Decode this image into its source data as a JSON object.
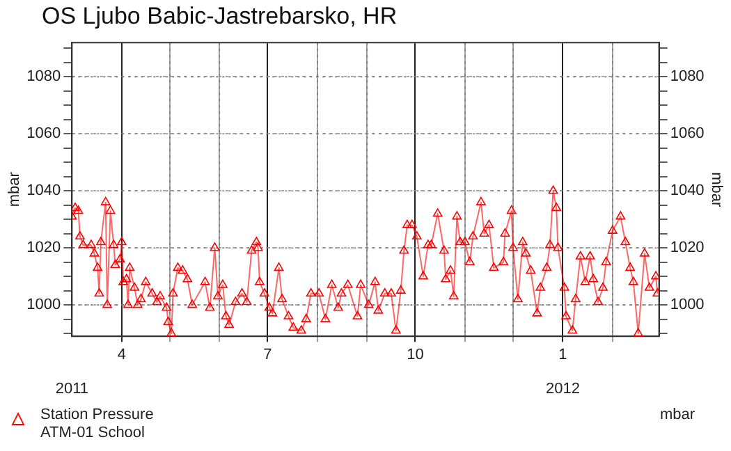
{
  "chart_data": {
    "type": "line",
    "title": "OS Ljubo Babic-Jastrebarsko, HR",
    "ylabel": "mbar",
    "y2label": "mbar",
    "xlim": [
      "2011-03-01",
      "2012-03-01"
    ],
    "x2lim": [
      "2011-03-01",
      "2012-03-01"
    ],
    "x2ticks": [
      {
        "value": "2011-03-01",
        "label": "2011"
      },
      {
        "value": "2012-01-01",
        "label": "2012"
      }
    ],
    "xticks": [
      {
        "value": "2011-04-01",
        "label": "4"
      },
      {
        "value": "2011-05-01",
        "label": null
      },
      {
        "value": "2011-06-01",
        "label": null
      },
      {
        "value": "2011-07-01",
        "label": "7"
      },
      {
        "value": "2011-08-01",
        "label": null
      },
      {
        "value": "2011-09-01",
        "label": null
      },
      {
        "value": "2011-10-01",
        "label": "10"
      },
      {
        "value": "2011-11-01",
        "label": null
      },
      {
        "value": "2011-12-01",
        "label": null
      },
      {
        "value": "2012-01-01",
        "label": "1"
      },
      {
        "value": "2012-02-01",
        "label": null
      }
    ],
    "ylim": [
      989,
      1092
    ],
    "yticks": [
      {
        "value": 990,
        "label": null
      },
      {
        "value": 995,
        "label": null
      },
      1000,
      {
        "value": 1005,
        "label": null
      },
      {
        "value": 1010,
        "label": null
      },
      {
        "value": 1015,
        "label": null
      },
      1020,
      {
        "value": 1025,
        "label": null
      },
      {
        "value": 1030,
        "label": null
      },
      {
        "value": 1035,
        "label": null
      },
      1040,
      {
        "value": 1045,
        "label": null
      },
      {
        "value": 1050,
        "label": null
      },
      {
        "value": 1055,
        "label": null
      },
      1060,
      {
        "value": 1065,
        "label": null
      },
      {
        "value": 1070,
        "label": null
      },
      {
        "value": 1075,
        "label": null
      },
      1080,
      {
        "value": 1085,
        "label": null
      },
      {
        "value": 1090,
        "label": null
      }
    ],
    "y2lim": [
      989,
      1092
    ],
    "y2ticks": [
      {
        "value": 990,
        "label": null
      },
      {
        "value": 995,
        "label": null
      },
      1000,
      {
        "value": 1005,
        "label": null
      },
      {
        "value": 1010,
        "label": null
      },
      {
        "value": 1015,
        "label": null
      },
      1020,
      {
        "value": 1025,
        "label": null
      },
      {
        "value": 1030,
        "label": null
      },
      {
        "value": 1035,
        "label": null
      },
      1040,
      {
        "value": 1045,
        "label": null
      },
      {
        "value": 1050,
        "label": null
      },
      {
        "value": 1055,
        "label": null
      },
      1060,
      {
        "value": 1065,
        "label": null
      },
      {
        "value": 1070,
        "label": null
      },
      {
        "value": 1075,
        "label": null
      },
      1080,
      {
        "value": 1085,
        "label": null
      },
      {
        "value": 1090,
        "label": null
      }
    ],
    "grid": true,
    "legend": "bottom",
    "marker": "triangle",
    "line_style": "solid",
    "annotations": [
      "mbar"
    ],
    "series": [
      {
        "name": "Station Pressure\nATM-01 School",
        "color": "#ff0000",
        "x": [
          "2011-03-01",
          "2011-03-03",
          "2011-03-05",
          "2011-03-06",
          "2011-03-08",
          "2011-03-13",
          "2011-03-15",
          "2011-03-17",
          "2011-03-18",
          "2011-03-19",
          "2011-03-22",
          "2011-03-23",
          "2011-03-25",
          "2011-03-27",
          "2011-03-28",
          "2011-03-31",
          "2011-04-01",
          "2011-04-02",
          "2011-04-04",
          "2011-04-05",
          "2011-04-06",
          "2011-04-09",
          "2011-04-11",
          "2011-04-13",
          "2011-04-16",
          "2011-04-20",
          "2011-04-23",
          "2011-04-25",
          "2011-04-29",
          "2011-04-30",
          "2011-05-02",
          "2011-05-03",
          "2011-05-06",
          "2011-05-09",
          "2011-05-12",
          "2011-05-15",
          "2011-05-23",
          "2011-05-26",
          "2011-05-29",
          "2011-05-31",
          "2011-06-03",
          "2011-06-05",
          "2011-06-07",
          "2011-06-11",
          "2011-06-15",
          "2011-06-18",
          "2011-06-21",
          "2011-06-24",
          "2011-06-25",
          "2011-06-26",
          "2011-06-29",
          "2011-07-02",
          "2011-07-04",
          "2011-07-08",
          "2011-07-10",
          "2011-07-14",
          "2011-07-17",
          "2011-07-22",
          "2011-07-25",
          "2011-07-28",
          "2011-08-02",
          "2011-08-06",
          "2011-08-10",
          "2011-08-14",
          "2011-08-16",
          "2011-08-20",
          "2011-08-26",
          "2011-08-28",
          "2011-09-02",
          "2011-09-06",
          "2011-09-08",
          "2011-09-12",
          "2011-09-16",
          "2011-09-19",
          "2011-09-22",
          "2011-09-24",
          "2011-09-26",
          "2011-09-29",
          "2011-10-02",
          "2011-10-06",
          "2011-10-09",
          "2011-10-11",
          "2011-10-15",
          "2011-10-19",
          "2011-10-20",
          "2011-10-23",
          "2011-10-25",
          "2011-10-27",
          "2011-10-29",
          "2011-11-01",
          "2011-11-04",
          "2011-11-06",
          "2011-11-11",
          "2011-11-13",
          "2011-11-16",
          "2011-11-19",
          "2011-11-25",
          "2011-11-26",
          "2011-11-30",
          "2011-12-01",
          "2011-12-04",
          "2011-12-07",
          "2011-12-09",
          "2011-12-12",
          "2011-12-16",
          "2011-12-18",
          "2011-12-22",
          "2011-12-24",
          "2011-12-26",
          "2011-12-28",
          "2011-12-29",
          "2012-01-02",
          "2012-01-03",
          "2012-01-07",
          "2012-01-09",
          "2012-01-12",
          "2012-01-15",
          "2012-01-18",
          "2012-01-20",
          "2012-01-23",
          "2012-01-26",
          "2012-01-28",
          "2012-02-01",
          "2012-02-06",
          "2012-02-09",
          "2012-02-12",
          "2012-02-14",
          "2012-02-17",
          "2012-02-21",
          "2012-02-24",
          "2012-02-28",
          "2012-02-29"
        ],
        "values": [
          1031,
          1034,
          1033,
          1024,
          1021,
          1021,
          1018,
          1013,
          1004,
          1022,
          1036,
          1000,
          1033,
          1021,
          1014,
          1016,
          1022,
          1008,
          1009,
          1000,
          1013,
          1006,
          1000,
          1002,
          1008,
          1004,
          1001,
          1003,
          999,
          994,
          990,
          1004,
          1013,
          1012,
          1009,
          1000,
          1008,
          999,
          1020,
          1003,
          1007,
          996,
          993,
          1001,
          1004,
          1001,
          1019,
          1022,
          1020,
          1008,
          1004,
          999,
          997,
          1013,
          1002,
          996,
          992,
          991,
          995,
          1004,
          1004,
          995,
          1007,
          999,
          1004,
          1007,
          996,
          1007,
          1000,
          1008,
          998,
          1004,
          1004,
          991,
          1005,
          1019,
          1028,
          1028,
          1024,
          1010,
          1021,
          1021,
          1032,
          1019,
          1009,
          1012,
          1003,
          1031,
          1022,
          1022,
          1015,
          1024,
          1036,
          1025,
          1028,
          1013,
          1015,
          1025,
          1033,
          1020,
          1002,
          1022,
          1018,
          1012,
          997,
          1006,
          1013,
          1021,
          1040,
          1034,
          1020,
          1006,
          996,
          991,
          1002,
          1017,
          1008,
          1017,
          1009,
          1001,
          1006,
          1015,
          1026,
          1031,
          1022,
          1013,
          1008,
          990,
          1018,
          1006,
          1010,
          1004
        ]
      }
    ]
  }
}
